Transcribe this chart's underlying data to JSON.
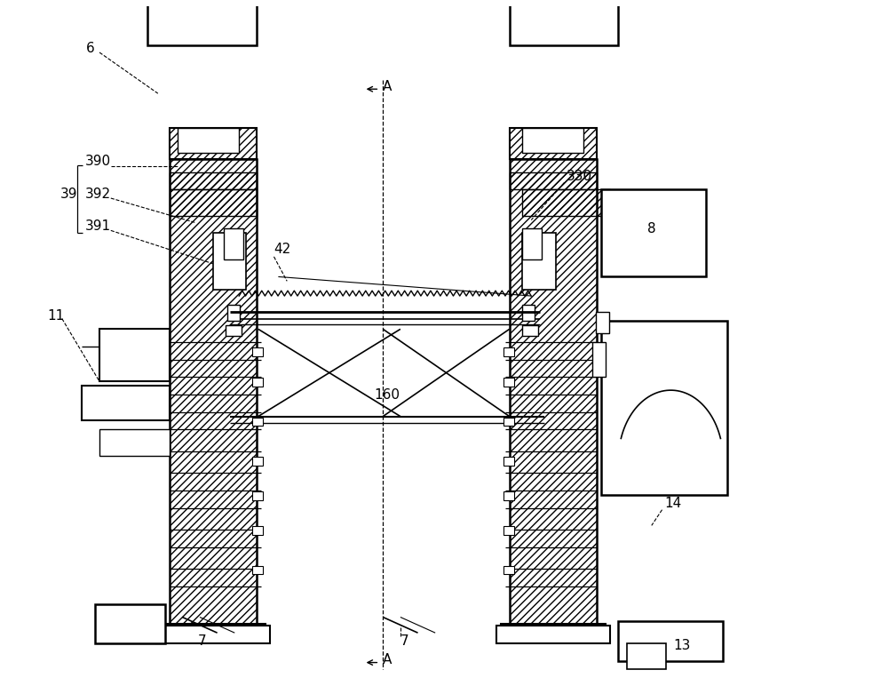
{
  "bg_color": "#ffffff",
  "lc": "#000000",
  "fig_width": 10.0,
  "fig_height": 7.81,
  "dpi": 100
}
